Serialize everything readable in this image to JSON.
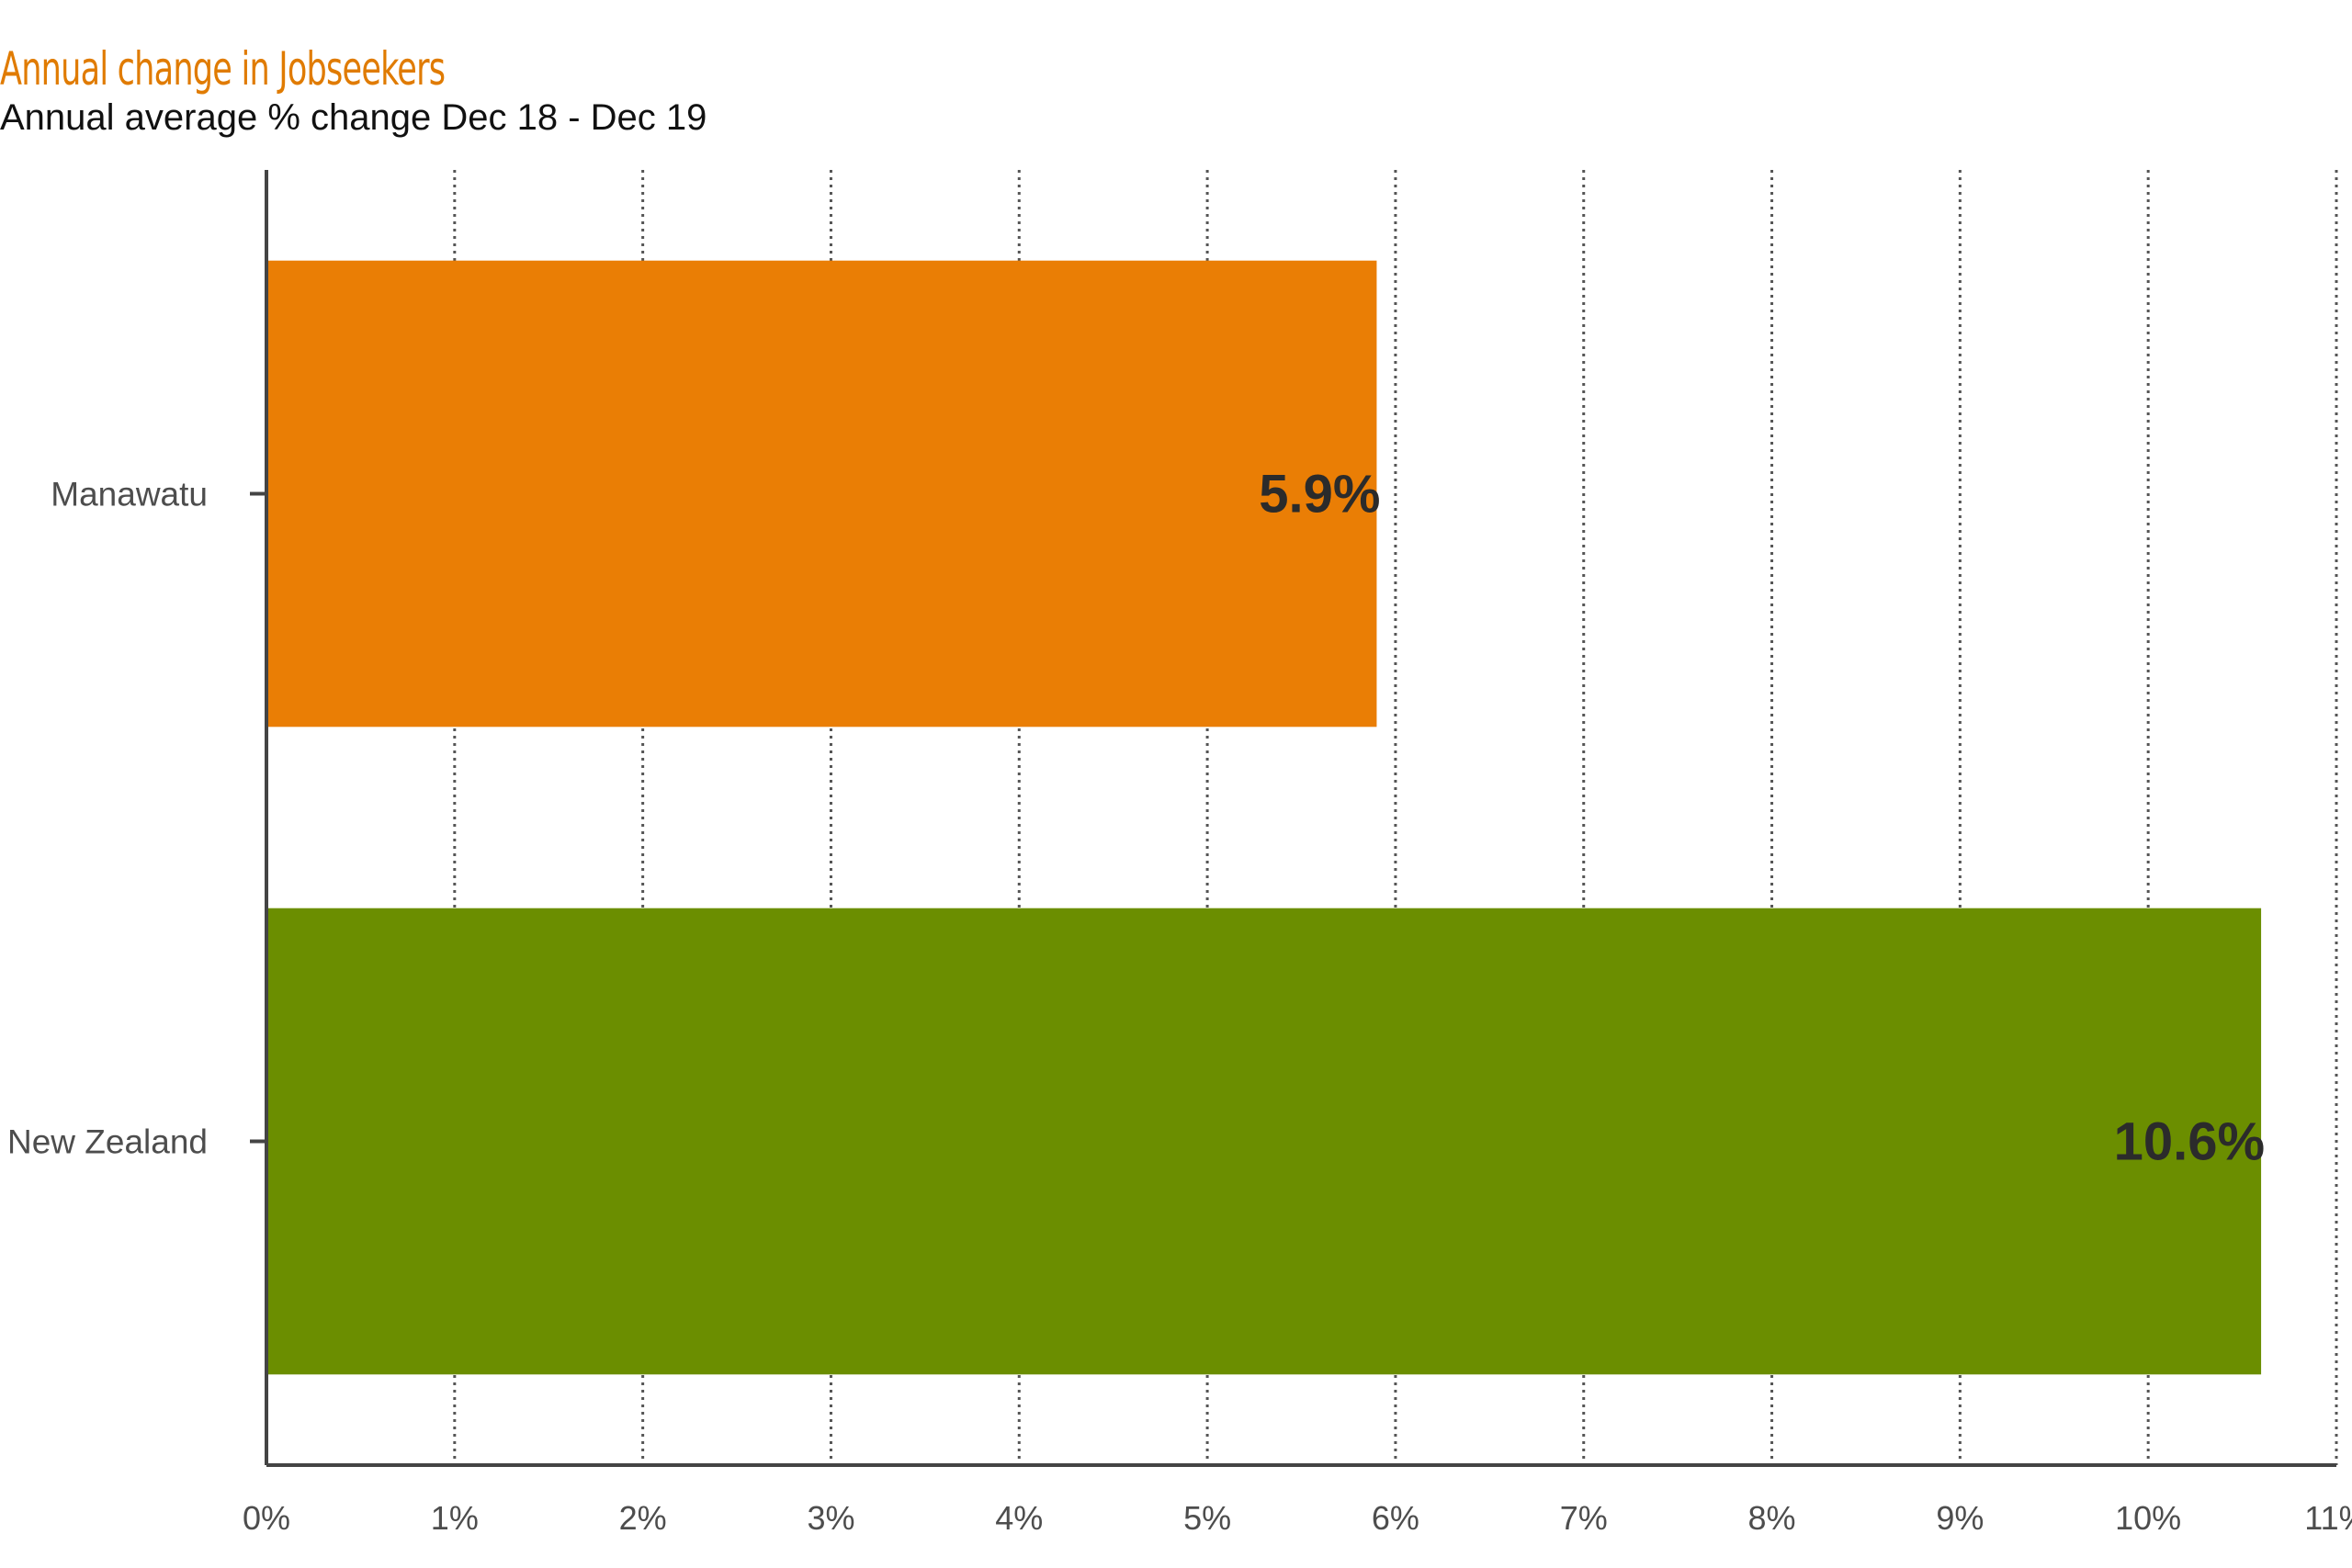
{
  "chart_data": {
    "type": "bar",
    "orientation": "horizontal",
    "title": "Annual change in Jobseekers",
    "subtitle": "Annual average % change Dec 18 - Dec 19",
    "categories": [
      "Manawatu",
      "New Zealand"
    ],
    "values": [
      5.9,
      10.6
    ],
    "value_labels": [
      "5.9%",
      "10.6%"
    ],
    "colors": [
      "#ea7e05",
      "#6b8e00"
    ],
    "xlim": [
      0,
      11
    ],
    "x_ticks": [
      "0%",
      "1%",
      "2%",
      "3%",
      "4%",
      "5%",
      "6%",
      "7%",
      "8%",
      "9%",
      "10%",
      "11%"
    ],
    "grid": "vertical dotted",
    "legend": "none",
    "title_color": "#e07b00"
  }
}
